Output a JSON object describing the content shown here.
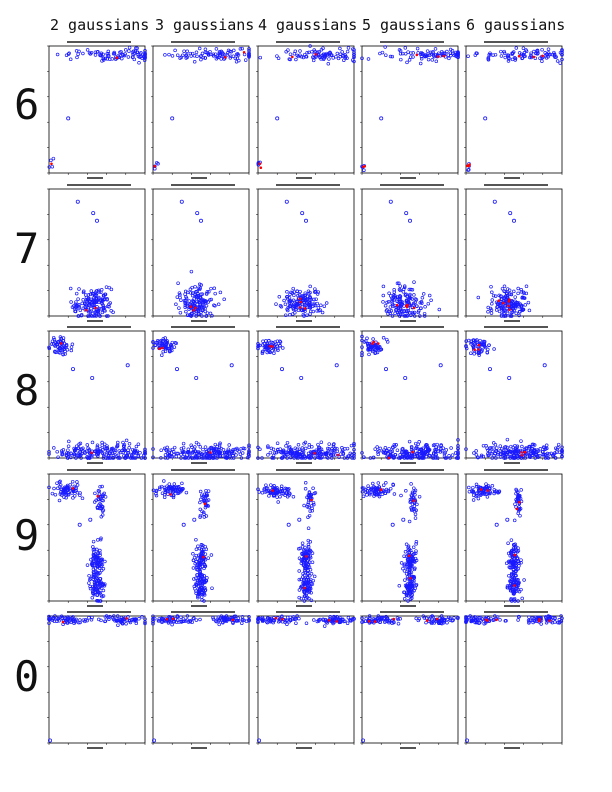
{
  "headers": [
    "2 gaussians",
    "3 gaussians",
    "4 gaussians",
    "5 gaussians",
    "6 gaussians"
  ],
  "rows": [
    "6",
    "7",
    "8",
    "9",
    "0"
  ],
  "colors": {
    "points": "#1a1aff",
    "centers": "#ff0000",
    "axes": "#000000"
  },
  "chart_data": {
    "type": "scatter",
    "xlim": [
      0,
      10
    ],
    "ylim": [
      0,
      10
    ],
    "panels": [
      {
        "row": "6",
        "clusters": [
          {
            "cx": 6.8,
            "cy": 9.3,
            "sx": 2.6,
            "sy": 0.25,
            "n": 90
          },
          {
            "cx": 0.2,
            "cy": 0.6,
            "sx": 0.15,
            "sy": 0.2,
            "n": 4
          }
        ],
        "outliers": [
          [
            2.0,
            4.3
          ]
        ]
      },
      {
        "row": "7",
        "clusters": [
          {
            "cx": 4.5,
            "cy": 1.0,
            "sx": 1.0,
            "sy": 0.6,
            "n": 150
          }
        ],
        "outliers": [
          [
            5.0,
            7.5
          ],
          [
            4.6,
            8.1
          ],
          [
            3.0,
            9.0
          ]
        ]
      },
      {
        "row": "8",
        "clusters": [
          {
            "cx": 1.2,
            "cy": 8.8,
            "sx": 0.6,
            "sy": 0.3,
            "n": 60
          },
          {
            "cx": 5.6,
            "cy": 0.4,
            "sx": 2.6,
            "sy": 0.35,
            "n": 200
          }
        ],
        "outliers": [
          [
            4.5,
            6.3
          ],
          [
            8.2,
            7.3
          ],
          [
            2.5,
            7.0
          ]
        ]
      },
      {
        "row": "9",
        "clusters": [
          {
            "cx": 1.8,
            "cy": 8.7,
            "sx": 0.8,
            "sy": 0.3,
            "n": 70
          },
          {
            "cx": 5.4,
            "cy": 7.8,
            "sx": 0.25,
            "sy": 0.7,
            "n": 35
          },
          {
            "cx": 5.0,
            "cy": 3.3,
            "sx": 0.35,
            "sy": 0.6,
            "n": 80
          },
          {
            "cx": 5.0,
            "cy": 1.2,
            "sx": 0.35,
            "sy": 0.6,
            "n": 80
          }
        ],
        "outliers": [
          [
            4.3,
            6.4
          ],
          [
            3.2,
            6.0
          ]
        ]
      },
      {
        "row": "0",
        "clusters": [
          {
            "cx": 1.8,
            "cy": 9.7,
            "sx": 1.2,
            "sy": 0.15,
            "n": 60
          },
          {
            "cx": 8.0,
            "cy": 9.7,
            "sx": 1.2,
            "sy": 0.15,
            "n": 60
          }
        ],
        "outliers": [
          [
            0.1,
            0.2
          ]
        ]
      }
    ]
  }
}
